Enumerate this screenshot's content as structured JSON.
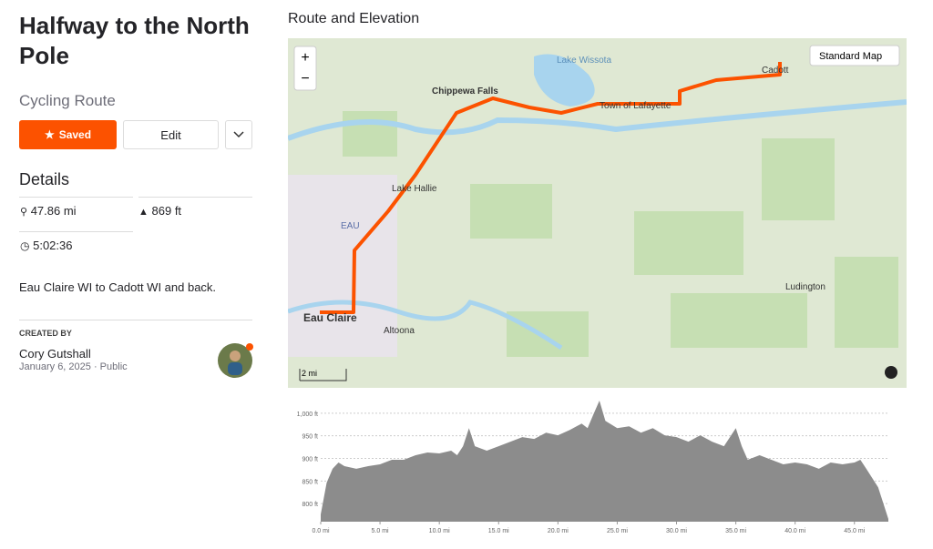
{
  "header": {
    "title": "Halfway to the North Pole",
    "subtitle": "Cycling Route"
  },
  "buttons": {
    "saved": "Saved",
    "edit": "Edit"
  },
  "details": {
    "heading": "Details",
    "distance": "47.86 mi",
    "elevation": "869 ft",
    "time": "5:02:36"
  },
  "description": "Eau Claire WI to Cadott WI and back.",
  "created_by": {
    "label": "CREATED BY",
    "name": "Cory Gutshall",
    "date": "January 6, 2025",
    "visibility": "Public"
  },
  "map": {
    "heading": "Route and Elevation",
    "map_type": "Standard Map",
    "scale": "2 mi",
    "labels": [
      "Lake Wissota",
      "Chippewa Falls",
      "Town of Lafayette",
      "Cadott",
      "Lake Hallie",
      "EAU",
      "Eau Claire",
      "Altoona",
      "Ludington"
    ]
  },
  "chart_data": {
    "type": "area",
    "color": "#8c8c8c",
    "grid": true,
    "x": [
      0,
      0.5,
      1,
      1.5,
      2,
      3,
      4,
      5,
      6,
      7,
      8,
      9,
      10,
      11,
      11.5,
      12,
      12.5,
      13,
      14,
      15,
      16,
      17,
      18,
      19,
      20,
      21,
      22,
      22.5,
      23,
      23.5,
      24,
      25,
      26,
      27,
      28,
      29,
      30,
      31,
      32,
      33,
      34,
      35,
      35.5,
      36,
      37,
      38,
      39,
      40,
      41,
      42,
      43,
      44,
      45,
      45.5,
      46,
      47,
      47.86
    ],
    "values": [
      776,
      846,
      877,
      891,
      883,
      877,
      883,
      887,
      897,
      897,
      907,
      913,
      911,
      917,
      907,
      927,
      967,
      927,
      917,
      927,
      937,
      947,
      943,
      957,
      951,
      963,
      977,
      967,
      998,
      1028,
      983,
      967,
      971,
      957,
      967,
      951,
      947,
      937,
      951,
      937,
      927,
      967,
      927,
      897,
      907,
      897,
      887,
      891,
      887,
      877,
      891,
      887,
      891,
      897,
      877,
      836,
      766
    ],
    "xlim": [
      0,
      47.86
    ],
    "ylim": [
      760,
      1040
    ],
    "xticks": [
      {
        "value": 0,
        "label": "0.0 mi"
      },
      {
        "value": 5,
        "label": "5.0 mi"
      },
      {
        "value": 10,
        "label": "10.0 mi"
      },
      {
        "value": 15,
        "label": "15.0 mi"
      },
      {
        "value": 20,
        "label": "20.0 mi"
      },
      {
        "value": 25,
        "label": "25.0 mi"
      },
      {
        "value": 30,
        "label": "30.0 mi"
      },
      {
        "value": 35,
        "label": "35.0 mi"
      },
      {
        "value": 40,
        "label": "40.0 mi"
      },
      {
        "value": 45,
        "label": "45.0 mi"
      }
    ],
    "yticks": [
      {
        "value": 800,
        "label": "800 ft"
      },
      {
        "value": 850,
        "label": "850 ft"
      },
      {
        "value": 900,
        "label": "900 ft"
      },
      {
        "value": 950,
        "label": "950 ft"
      },
      {
        "value": 1000,
        "label": "1,000 ft"
      }
    ]
  }
}
